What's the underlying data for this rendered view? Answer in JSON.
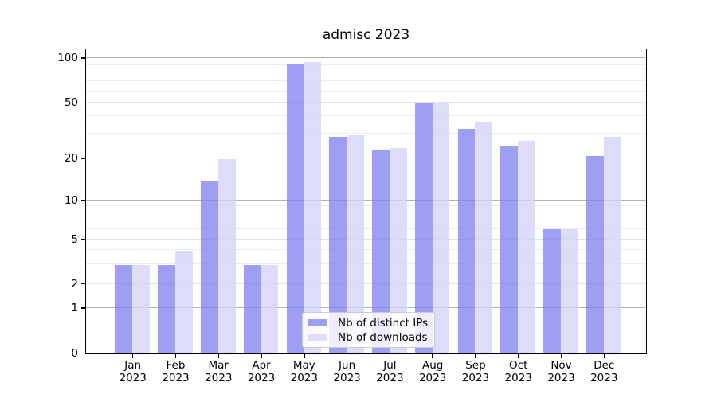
{
  "title": "admisc 2023",
  "legend": {
    "position": "lower center",
    "items": [
      {
        "label": "Nb of distinct IPs",
        "color": "#9e9ef2"
      },
      {
        "label": "Nb of downloads",
        "color": "#dedef9"
      }
    ]
  },
  "axes": {
    "y_tick_labels": [
      "0",
      "1",
      "2",
      "5",
      "10",
      "20",
      "50",
      "100"
    ],
    "x_tick_labels": [
      "Jan 2023",
      "Feb 2023",
      "Mar 2023",
      "Apr 2023",
      "May 2023",
      "Jun 2023",
      "Jul 2023",
      "Aug 2023",
      "Sep 2023",
      "Oct 2023",
      "Nov 2023",
      "Dec 2023"
    ]
  },
  "chart_data": {
    "type": "bar",
    "title": "admisc 2023",
    "categories": [
      "Jan 2023",
      "Feb 2023",
      "Mar 2023",
      "Apr 2023",
      "May 2023",
      "Jun 2023",
      "Jul 2023",
      "Aug 2023",
      "Sep 2023",
      "Oct 2023",
      "Nov 2023",
      "Dec 2023"
    ],
    "series": [
      {
        "name": "Nb of distinct IPs",
        "color": "#9e9ef2",
        "fill": "rgba(125,125,238,0.75)",
        "values": [
          3,
          3,
          14,
          3,
          92,
          29,
          23,
          50,
          33,
          25,
          6,
          21
        ]
      },
      {
        "name": "Nb of downloads",
        "color": "#dedef9",
        "fill": "rgba(212,212,247,0.78)",
        "values": [
          3,
          4,
          20,
          3,
          95,
          30,
          24,
          50,
          37,
          27,
          6,
          29
        ]
      }
    ],
    "xlabel": "",
    "ylabel": "",
    "yscale": "log-like with 0 baseline",
    "yticks": [
      0,
      1,
      2,
      5,
      10,
      20,
      50,
      100
    ],
    "minor_gridline_values": [
      3,
      4,
      6,
      7,
      8,
      9,
      30,
      40,
      60,
      70,
      80,
      90
    ],
    "ylim": [
      0,
      110
    ],
    "grid": true,
    "legend_position": "lower center"
  }
}
